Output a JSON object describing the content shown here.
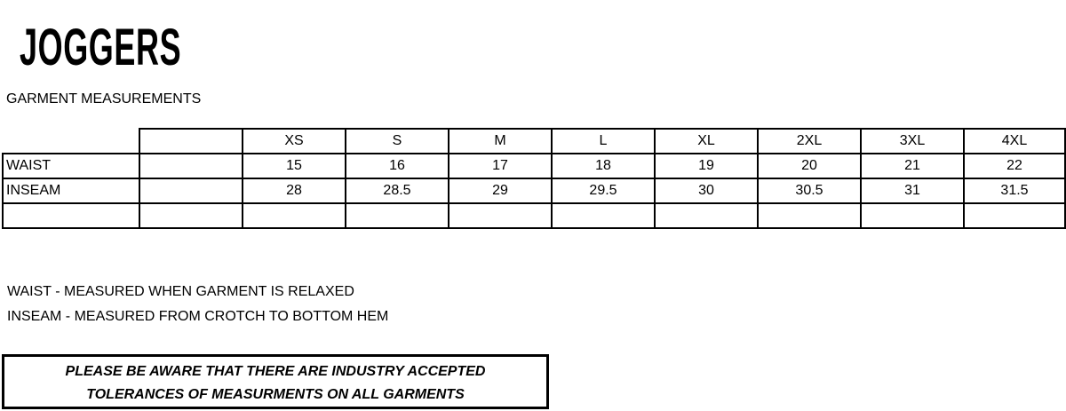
{
  "title": "JOGGERS",
  "subtitle": "GARMENT MEASUREMENTS",
  "table": {
    "sizes": [
      "XS",
      "S",
      "M",
      "L",
      "XL",
      "2XL",
      "3XL",
      "4XL"
    ],
    "rows": [
      {
        "label": "WAIST",
        "values": [
          "15",
          "16",
          "17",
          "18",
          "19",
          "20",
          "21",
          "22"
        ]
      },
      {
        "label": "INSEAM",
        "values": [
          "28",
          "28.5",
          "29",
          "29.5",
          "30",
          "30.5",
          "31",
          "31.5"
        ]
      },
      {
        "label": "",
        "values": [
          "",
          "",
          "",
          "",
          "",
          "",
          "",
          ""
        ]
      }
    ]
  },
  "notes": [
    "WAIST - MEASURED WHEN GARMENT IS RELAXED",
    "INSEAM - MEASURED FROM CROTCH TO BOTTOM HEM"
  ],
  "notice": {
    "line1": "PLEASE BE AWARE THAT THERE ARE INDUSTRY ACCEPTED",
    "line2": "TOLERANCES OF MEASURMENTS ON ALL GARMENTS"
  }
}
